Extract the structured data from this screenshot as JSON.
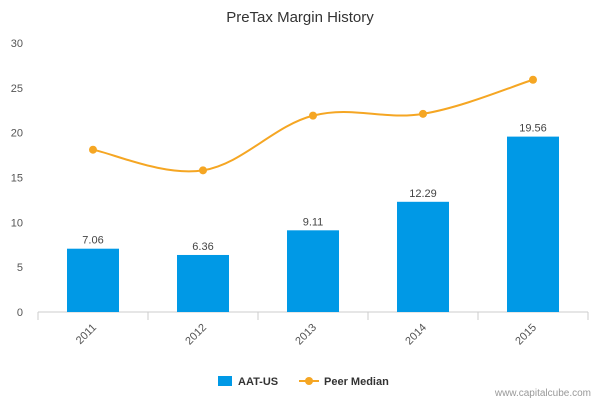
{
  "chart_data": {
    "type": "bar",
    "title": "PreTax Margin History",
    "categories": [
      "2011",
      "2012",
      "2013",
      "2014",
      "2015"
    ],
    "ylim": [
      0,
      30
    ],
    "yticks": [
      "0",
      "5",
      "10",
      "15",
      "20",
      "25",
      "30"
    ],
    "grid": false,
    "legend_position": "bottom",
    "series": [
      {
        "name": "AAT-US",
        "type": "bar",
        "color": "#0099e6",
        "values": [
          7.06,
          6.36,
          9.11,
          12.29,
          19.56
        ],
        "data_labels": [
          "7.06",
          "6.36",
          "9.11",
          "12.29",
          "19.56"
        ]
      },
      {
        "name": "Peer Median",
        "type": "line",
        "color": "#f5a623",
        "values": [
          18.1,
          15.8,
          21.9,
          22.1,
          25.9
        ]
      }
    ]
  },
  "footer": {
    "credit": "www.capitalcube.com"
  }
}
